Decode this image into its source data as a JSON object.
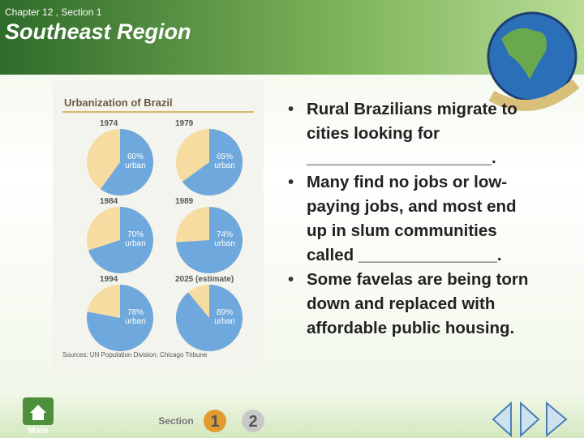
{
  "header": {
    "chapter": "Chapter 12 , Section 1",
    "title": "Southeast Region"
  },
  "chart_data": {
    "type": "pie",
    "title": "Urbanization of Brazil",
    "categories": [
      "1974",
      "1979",
      "1984",
      "1989",
      "1994",
      "2025 (estimate)"
    ],
    "values": [
      60,
      65,
      70,
      74,
      78,
      89
    ],
    "value_labels": [
      "60% urban",
      "65% urban",
      "70% urban",
      "74% urban",
      "78% urban",
      "89% urban"
    ],
    "color": "#6fa8dc",
    "background_color": "#f6dca0",
    "source": "Sources: UN Population Division; Chicago Tribune"
  },
  "bullets": [
    "Rural Brazilians migrate to cities looking for ____________________.",
    "Many find no jobs or low-paying jobs, and most end up in slum communities called _______________.",
    "Some favelas are being torn down and replaced with affordable public housing."
  ],
  "nav": {
    "main": "Main",
    "section": "Section",
    "sections": [
      "1",
      "2"
    ]
  }
}
